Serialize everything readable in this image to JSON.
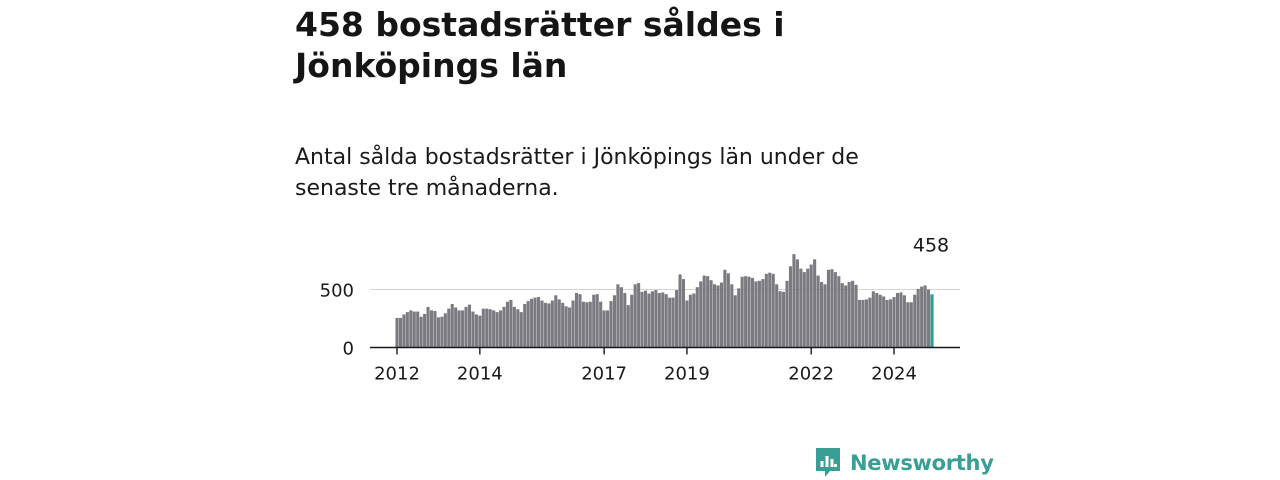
{
  "header": {
    "title": "458 bostadsrätter såldes i Jönköpings län",
    "subtitle": "Antal sålda bostadsrätter i Jönköpings län under de senaste tre månaderna."
  },
  "brand": {
    "name": "Newsworthy",
    "icon": "newsworthy-logo-icon",
    "color": "#3a9e96"
  },
  "chart_data": {
    "type": "bar",
    "title": "",
    "xlabel": "",
    "ylabel": "",
    "ylim": [
      0,
      850
    ],
    "yticks": [
      0,
      500
    ],
    "xticks": [
      "2012",
      "2014",
      "2017",
      "2019",
      "2022",
      "2024"
    ],
    "grid": "horizontal",
    "bar_color": "#7b7a80",
    "highlight_color": "#2a9d8f",
    "highlight_label": "458",
    "x_start": "2012-01",
    "values": [
      255,
      255,
      285,
      305,
      320,
      310,
      310,
      265,
      290,
      350,
      320,
      315,
      260,
      265,
      295,
      335,
      375,
      345,
      320,
      320,
      350,
      370,
      310,
      285,
      275,
      335,
      335,
      330,
      320,
      305,
      320,
      350,
      395,
      410,
      350,
      330,
      305,
      375,
      400,
      420,
      430,
      435,
      405,
      385,
      380,
      405,
      450,
      415,
      385,
      355,
      345,
      405,
      470,
      460,
      395,
      390,
      395,
      455,
      460,
      395,
      320,
      320,
      400,
      450,
      545,
      520,
      470,
      365,
      455,
      545,
      555,
      480,
      490,
      465,
      485,
      495,
      470,
      475,
      460,
      430,
      430,
      495,
      630,
      590,
      405,
      455,
      465,
      520,
      570,
      620,
      615,
      580,
      545,
      535,
      560,
      670,
      640,
      545,
      450,
      510,
      610,
      615,
      610,
      600,
      570,
      575,
      590,
      635,
      645,
      635,
      545,
      485,
      480,
      575,
      700,
      805,
      760,
      680,
      650,
      680,
      715,
      760,
      620,
      565,
      545,
      670,
      675,
      650,
      615,
      555,
      535,
      565,
      575,
      540,
      410,
      410,
      415,
      430,
      485,
      470,
      455,
      440,
      410,
      415,
      435,
      470,
      475,
      450,
      390,
      390,
      455,
      505,
      525,
      535,
      500,
      458
    ]
  }
}
